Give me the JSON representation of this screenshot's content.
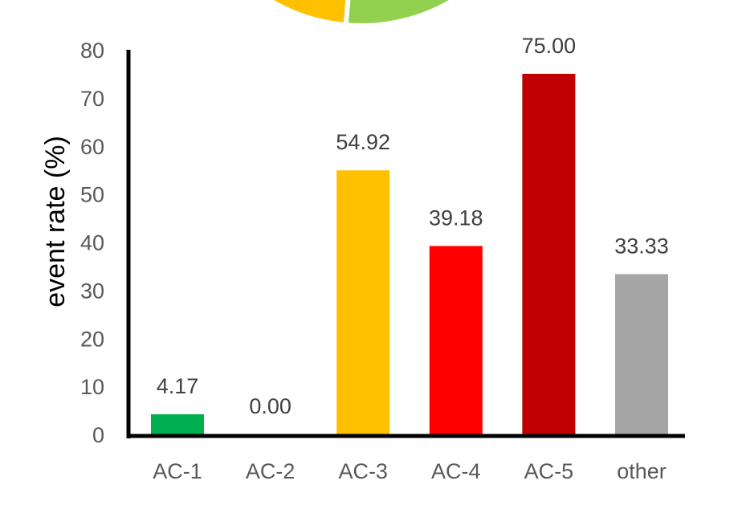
{
  "chart_data": {
    "type": "bar",
    "categories": [
      "AC-1",
      "AC-2",
      "AC-3",
      "AC-4",
      "AC-5",
      "other"
    ],
    "values": [
      4.17,
      0.0,
      54.92,
      39.18,
      75.0,
      33.33
    ],
    "data_labels": [
      "4.17",
      "0.00",
      "54.92",
      "39.18",
      "75.00",
      "33.33"
    ],
    "bar_colors": [
      "#00b050",
      "#00b050",
      "#ffc000",
      "#ff0000",
      "#c00000",
      "#a6a6a6"
    ],
    "ylabel": "event rate (%)",
    "xlabel": "",
    "ylim": [
      0,
      80
    ],
    "yticks": [
      "0",
      "10",
      "20",
      "30",
      "40",
      "50",
      "60",
      "70",
      "80"
    ],
    "grid": false,
    "legend": "none",
    "partial_pie_top": {
      "colors": [
        "#ffc000",
        "#92d050"
      ]
    }
  }
}
